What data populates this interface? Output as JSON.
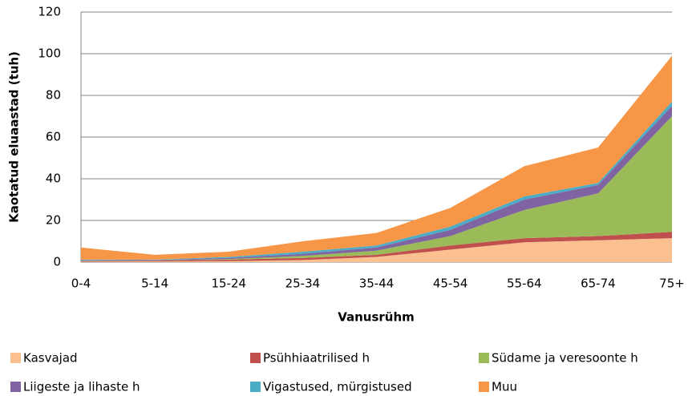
{
  "chart_data": {
    "type": "stacked_area",
    "ylabel": "Kaotatud eluaastad (tuh)",
    "xlabel": "Vanusrühm",
    "categories": [
      "0-4",
      "5-14",
      "15-24",
      "25-34",
      "35-44",
      "45-54",
      "55-64",
      "65-74",
      "75+"
    ],
    "series": [
      {
        "name": "Kasvajad",
        "color": "#fac090",
        "values": [
          0.2,
          0.3,
          0.5,
          1,
          2.5,
          6,
          9.5,
          10.5,
          11.5
        ]
      },
      {
        "name": "Psühhiaatrilised h",
        "color": "#c0504d",
        "values": [
          0.3,
          0.4,
          0.7,
          1,
          1,
          2,
          2,
          2,
          3
        ]
      },
      {
        "name": "Südame ja veresoonte h",
        "color": "#9bbb59",
        "values": [
          0.1,
          0.1,
          0.3,
          1,
          2,
          4.5,
          13.5,
          20.5,
          55.5
        ]
      },
      {
        "name": "Liigeste ja lihaste h",
        "color": "#8064a2",
        "values": [
          0.2,
          0.2,
          0.5,
          1,
          1.5,
          3,
          5,
          4,
          5
        ]
      },
      {
        "name": "Vigastused, mürgistused",
        "color": "#4bacc6",
        "values": [
          0.4,
          0.2,
          0.5,
          1,
          1,
          1.5,
          1.5,
          1,
          2
        ]
      },
      {
        "name": "Muu",
        "color": "#f79646",
        "values": [
          5.8,
          2.3,
          2.5,
          5,
          6,
          9,
          14.5,
          17,
          22
        ]
      }
    ],
    "ylim": [
      0,
      120
    ],
    "yticks": [
      0,
      20,
      40,
      60,
      80,
      100,
      120
    ],
    "grid": true
  }
}
